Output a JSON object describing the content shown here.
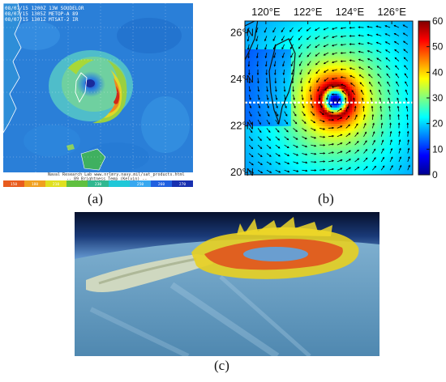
{
  "panel_a": {
    "caption": "(a)",
    "header_lines": [
      "08/07/15 1200Z 13W SOUDELOR",
      "08/07/15 1305Z METOP-A 89",
      "08/07/15 1301Z MTSAT-2 IR"
    ],
    "footer_lines": [
      "Naval Research Lab  www.nrlmry.navy.mil/sat_products.html",
      "-- 89 Brightness Temp (Kelvin) --"
    ],
    "scale_labels": [
      "150",
      "180",
      "210",
      "",
      "230",
      "",
      "250",
      "260",
      "270"
    ],
    "scale_colors": [
      "#e85c1e",
      "#f0a020",
      "#e0e020",
      "#60c040",
      "#30b890",
      "#20c8d8",
      "#38a8f0",
      "#2060e0",
      "#1830b0"
    ]
  },
  "panel_b": {
    "caption": "(b)",
    "chart_data": {
      "type": "heatmap",
      "title": "",
      "x_ticks": [
        "120°E",
        "122°E",
        "124°E",
        "126°E"
      ],
      "x_values": [
        120,
        122,
        124,
        126
      ],
      "y_ticks": [
        "26°N",
        "24°N",
        "22°N",
        "20°N"
      ],
      "y_values": [
        26,
        24,
        22,
        20
      ],
      "xlim": [
        119,
        127
      ],
      "ylim": [
        19.9,
        26.5
      ],
      "colorbar": {
        "ticks": [
          "60",
          "50",
          "40",
          "30",
          "20",
          "10",
          "0"
        ],
        "tick_values": [
          60,
          50,
          40,
          30,
          20,
          10,
          0
        ],
        "range": [
          0,
          60
        ],
        "colormap": "jet"
      },
      "storm_center": {
        "lon": 123.3,
        "lat": 23.1
      },
      "field_max": 60,
      "eye_radius_deg": 0.25,
      "rmw_deg": 0.7,
      "cross_section_lat": 23.0
    }
  },
  "panel_c": {
    "caption": "(c)"
  }
}
